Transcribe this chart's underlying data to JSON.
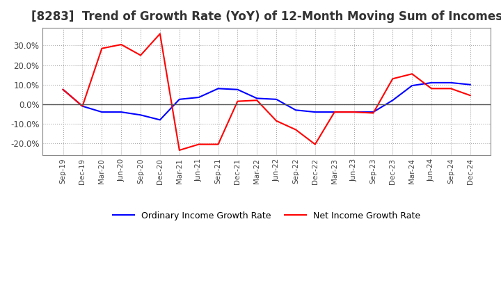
{
  "title": "[8283]  Trend of Growth Rate (YoY) of 12-Month Moving Sum of Incomes",
  "title_fontsize": 12,
  "ylim": [
    -0.26,
    0.39
  ],
  "yticks": [
    -0.2,
    -0.1,
    0.0,
    0.1,
    0.2,
    0.3
  ],
  "ytick_labels": [
    "-20.0%",
    "-10.0%",
    "0.0%",
    "10.0%",
    "20.0%",
    "30.0%"
  ],
  "x_labels": [
    "Sep-19",
    "Dec-19",
    "Mar-20",
    "Jun-20",
    "Sep-20",
    "Dec-20",
    "Mar-21",
    "Jun-21",
    "Sep-21",
    "Dec-21",
    "Mar-22",
    "Jun-22",
    "Sep-22",
    "Dec-22",
    "Mar-23",
    "Jun-23",
    "Sep-23",
    "Dec-23",
    "Mar-24",
    "Jun-24",
    "Sep-24",
    "Dec-24"
  ],
  "ordinary_income": [
    0.075,
    -0.01,
    -0.04,
    -0.04,
    -0.055,
    -0.08,
    0.025,
    0.035,
    0.08,
    0.075,
    0.03,
    0.025,
    -0.03,
    -0.04,
    -0.04,
    -0.04,
    -0.04,
    0.02,
    0.095,
    0.11,
    0.11,
    0.1
  ],
  "net_income": [
    0.075,
    -0.01,
    0.285,
    0.305,
    0.25,
    0.36,
    -0.235,
    -0.205,
    -0.205,
    0.015,
    0.02,
    -0.085,
    -0.13,
    -0.205,
    -0.04,
    -0.04,
    -0.045,
    0.13,
    0.155,
    0.08,
    0.08,
    0.045
  ],
  "ordinary_color": "#0000FF",
  "net_color": "#FF0000",
  "background_color": "#FFFFFF",
  "grid_color": "#AAAAAA",
  "legend_labels": [
    "Ordinary Income Growth Rate",
    "Net Income Growth Rate"
  ]
}
